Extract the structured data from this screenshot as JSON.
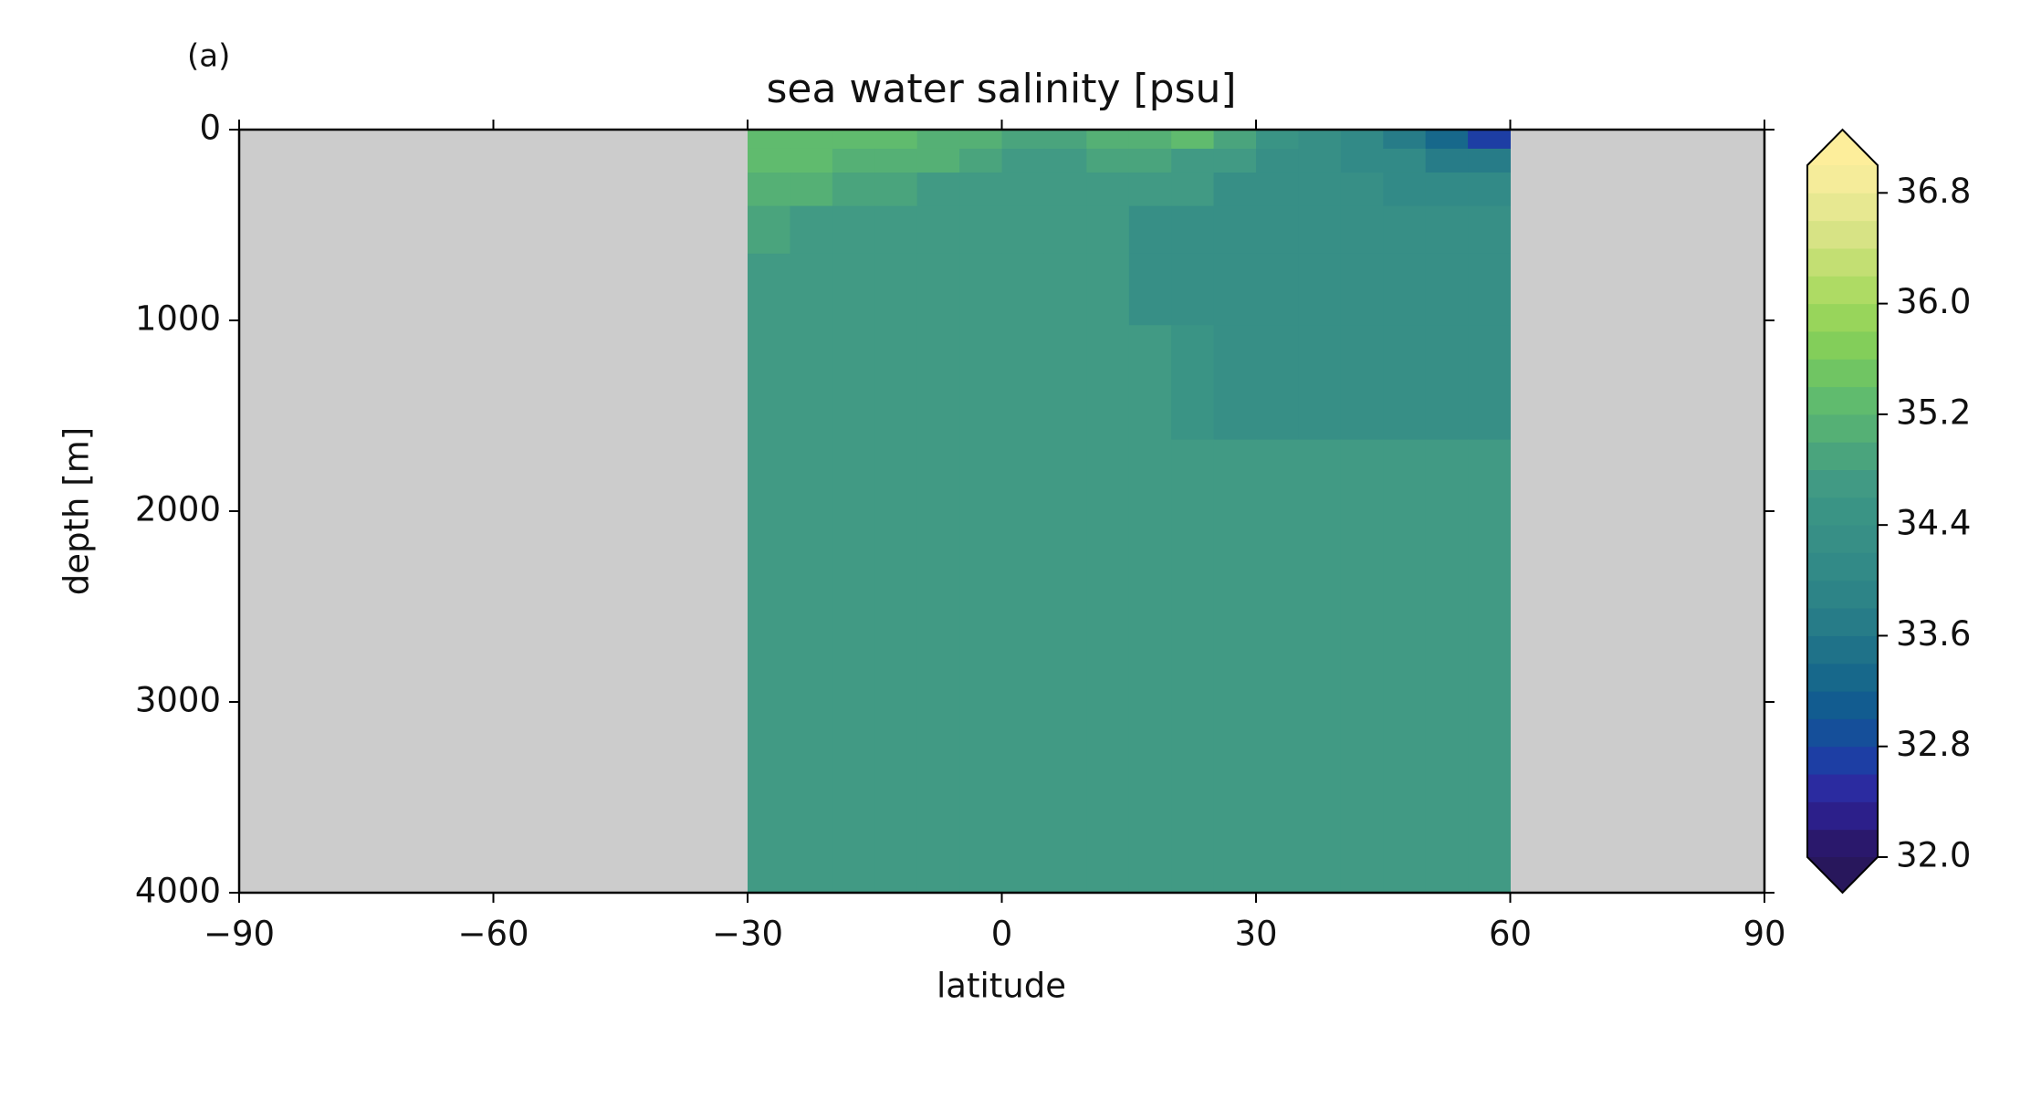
{
  "chart_data": {
    "type": "heatmap",
    "panel_label": "(a)",
    "title": "sea water salinity [psu]",
    "x_label": "latitude",
    "y_label": "depth [m]",
    "x": [
      -27.5,
      -22.5,
      -17.5,
      -12.5,
      -7.5,
      -2.5,
      2.5,
      7.5,
      12.5,
      17.5,
      22.5,
      27.5,
      32.5,
      37.5,
      42.5,
      47.5,
      52.5,
      57.5
    ],
    "y": [
      50,
      150,
      300,
      500,
      800,
      1250,
      2000,
      3250
    ],
    "values": [
      [
        35.3,
        35.3,
        35.3,
        35.2,
        35.1,
        35.0,
        34.9,
        34.9,
        35.0,
        35.1,
        35.2,
        34.9,
        34.5,
        34.3,
        34.0,
        33.6,
        33.2,
        32.6
      ],
      [
        35.2,
        35.2,
        35.1,
        35.0,
        35.0,
        34.9,
        34.8,
        34.8,
        34.9,
        34.9,
        34.8,
        34.6,
        34.4,
        34.3,
        34.1,
        34.0,
        33.8,
        33.6
      ],
      [
        35.1,
        35.0,
        34.9,
        34.9,
        34.8,
        34.8,
        34.8,
        34.8,
        34.8,
        34.8,
        34.7,
        34.4,
        34.3,
        34.3,
        34.2,
        34.1,
        34.1,
        34.0
      ],
      [
        34.9,
        34.8,
        34.8,
        34.8,
        34.7,
        34.7,
        34.7,
        34.7,
        34.7,
        34.4,
        34.3,
        34.3,
        34.3,
        34.2,
        34.2,
        34.2,
        34.2,
        34.2
      ],
      [
        34.7,
        34.7,
        34.7,
        34.7,
        34.7,
        34.7,
        34.7,
        34.7,
        34.7,
        34.4,
        34.3,
        34.3,
        34.3,
        34.3,
        34.3,
        34.3,
        34.3,
        34.3
      ],
      [
        34.7,
        34.7,
        34.7,
        34.7,
        34.7,
        34.7,
        34.7,
        34.7,
        34.7,
        34.7,
        34.5,
        34.4,
        34.3,
        34.3,
        34.3,
        34.3,
        34.3,
        34.3
      ],
      [
        34.7,
        34.7,
        34.7,
        34.7,
        34.7,
        34.7,
        34.7,
        34.7,
        34.7,
        34.7,
        34.7,
        34.7,
        34.7,
        34.7,
        34.7,
        34.7,
        34.7,
        34.7
      ],
      [
        34.7,
        34.7,
        34.7,
        34.7,
        34.7,
        34.7,
        34.7,
        34.7,
        34.7,
        34.7,
        34.7,
        34.7,
        34.7,
        34.7,
        34.7,
        34.7,
        34.7,
        34.7
      ]
    ],
    "xlim": [
      -90,
      90
    ],
    "xticks": [
      {
        "value": -90,
        "label": "−90"
      },
      {
        "value": -60,
        "label": "−60"
      },
      {
        "value": -30,
        "label": "−30"
      },
      0,
      30,
      60,
      90
    ],
    "ylim": [
      0,
      4000
    ],
    "y_inverted": true,
    "yticks": [
      0,
      1000,
      2000,
      3000,
      4000
    ],
    "mask_color": "#cccccc",
    "clim": [
      32,
      37
    ],
    "cticks": [
      {
        "value": 32,
        "label": "32.0"
      },
      {
        "value": 32.8,
        "label": "32.8"
      },
      {
        "value": 33.6,
        "label": "33.6"
      },
      {
        "value": 34.4,
        "label": "34.4"
      },
      {
        "value": 35.2,
        "label": "35.2"
      },
      {
        "value": 36,
        "label": "36.0"
      },
      {
        "value": 36.8,
        "label": "36.8"
      }
    ],
    "colors": [
      "#2a186c",
      "#2c1f8a",
      "#2b2ba0",
      "#1d3ea4",
      "#154f9a",
      "#125c90",
      "#17688b",
      "#1f7289",
      "#277c88",
      "#2d8487",
      "#328a87",
      "#378f86",
      "#3a9485",
      "#419a84",
      "#4aa47d",
      "#55b075",
      "#60bb6e",
      "#70c563",
      "#83ce5a",
      "#98d55b",
      "#aedb64",
      "#c3df73",
      "#d7e385",
      "#e7e891",
      "#f5ec9a"
    ],
    "under_color": "#28175c",
    "over_color": "#fdee9b"
  }
}
